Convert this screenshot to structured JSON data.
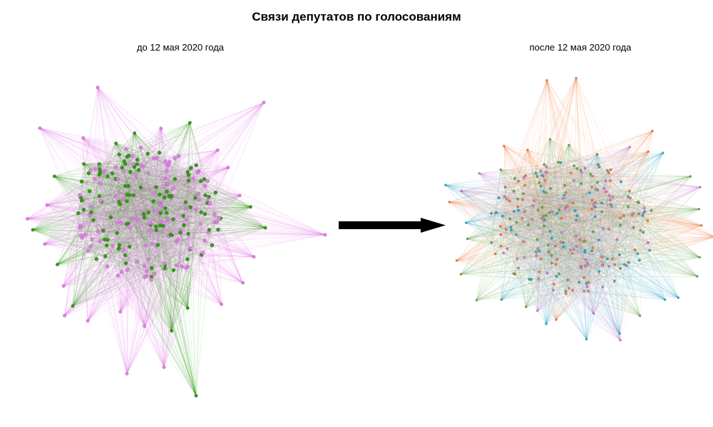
{
  "title": "Связи депутатов по голосованиям",
  "panels": [
    {
      "subtitle": "до 12 мая 2020 года",
      "colors": [
        "#2f9b11",
        "#e27be8"
      ]
    },
    {
      "subtitle": "после 12 мая 2020 года",
      "colors": [
        "#6aa84f",
        "#c77dd0",
        "#f07a3c",
        "#2aa9c9"
      ]
    }
  ],
  "arrow_color": "#000000"
}
